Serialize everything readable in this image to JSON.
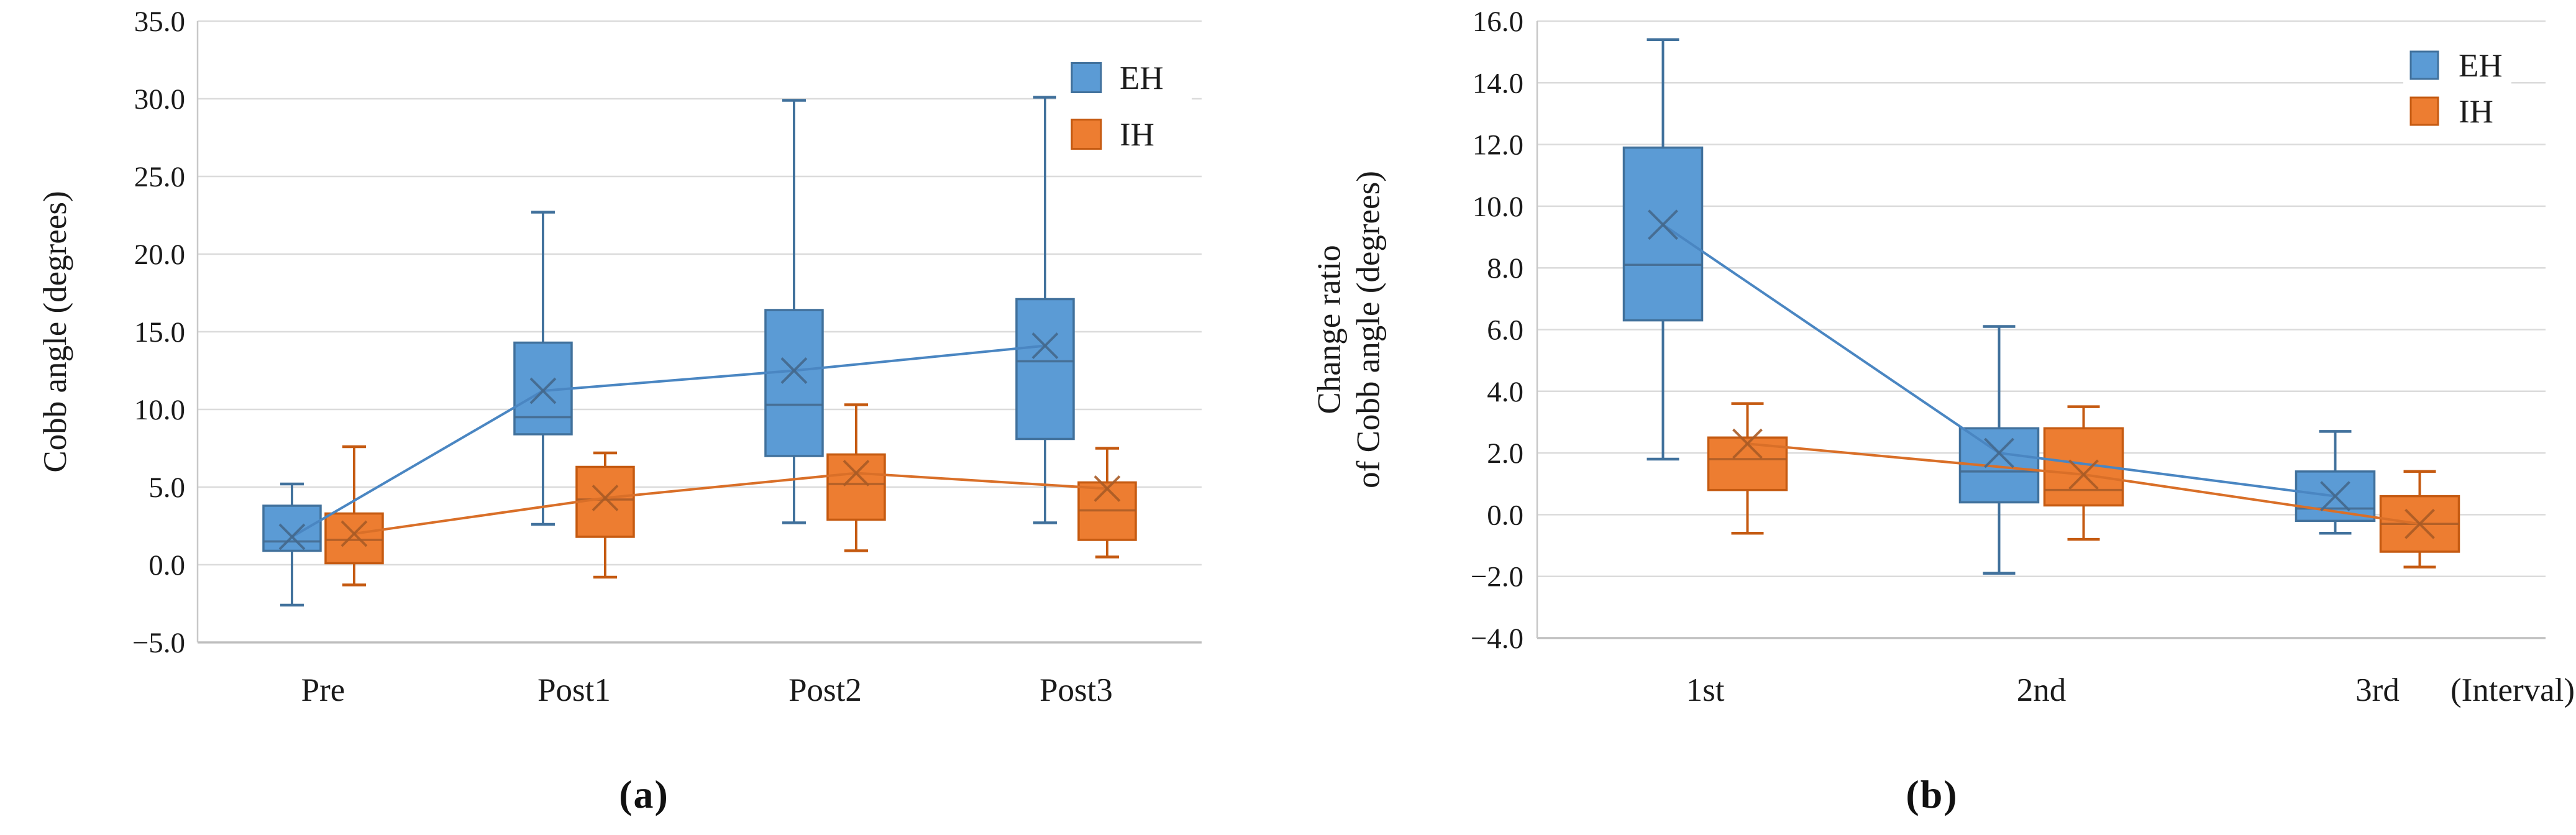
{
  "page": {
    "background": "#ffffff"
  },
  "style": {
    "grid_color": "#DBDBDB",
    "axis_color": "#BFBFBF",
    "vertical_axis_color": "#C8C8C8",
    "text_color": "#1a1a1a",
    "legend_background": "#ffffff"
  },
  "palette": {
    "EH": {
      "fill": "#5B9BD5",
      "stroke": "#41719C",
      "line": "#4A86C2",
      "marker": "#44688C"
    },
    "IH": {
      "fill": "#ED7D31",
      "stroke": "#C55A11",
      "line": "#D96F28",
      "marker": "#A85B26"
    }
  },
  "chart_data": [
    {
      "id": "a",
      "type": "box",
      "caption": "(a)",
      "ylabel_lines": [
        "Cobb angle (degrees)"
      ],
      "ylim": [
        -5.0,
        35.0
      ],
      "ystep": 5.0,
      "tick_decimals": 1,
      "grid": true,
      "legend_position": "top-right-inside",
      "categories": [
        "Pre",
        "Post1",
        "Post2",
        "Post3"
      ],
      "x_annotation": "",
      "legend": [
        "EH",
        "IH"
      ],
      "series": [
        {
          "name": "EH",
          "boxes": [
            {
              "category": "Pre",
              "whisker_low": -2.6,
              "q1": 0.9,
              "median": 1.5,
              "mean": 1.8,
              "q3": 3.8,
              "whisker_high": 5.2
            },
            {
              "category": "Post1",
              "whisker_low": 2.6,
              "q1": 8.4,
              "median": 9.5,
              "mean": 11.2,
              "q3": 14.3,
              "whisker_high": 22.7
            },
            {
              "category": "Post2",
              "whisker_low": 2.7,
              "q1": 7.0,
              "median": 10.3,
              "mean": 12.5,
              "q3": 16.4,
              "whisker_high": 29.9
            },
            {
              "category": "Post3",
              "whisker_low": 2.7,
              "q1": 8.1,
              "median": 13.1,
              "mean": 14.1,
              "q3": 17.1,
              "whisker_high": 30.1
            }
          ]
        },
        {
          "name": "IH",
          "boxes": [
            {
              "category": "Pre",
              "whisker_low": -1.3,
              "q1": 0.1,
              "median": 1.6,
              "mean": 2.0,
              "q3": 3.3,
              "whisker_high": 7.6
            },
            {
              "category": "Post1",
              "whisker_low": -0.8,
              "q1": 1.8,
              "median": 4.2,
              "mean": 4.3,
              "q3": 6.3,
              "whisker_high": 7.2
            },
            {
              "category": "Post2",
              "whisker_low": 0.9,
              "q1": 2.9,
              "median": 5.2,
              "mean": 5.9,
              "q3": 7.1,
              "whisker_high": 10.3
            },
            {
              "category": "Post3",
              "whisker_low": 0.5,
              "q1": 1.6,
              "median": 3.5,
              "mean": 4.9,
              "q3": 5.3,
              "whisker_high": 7.5
            }
          ]
        }
      ]
    },
    {
      "id": "b",
      "type": "box",
      "caption": "(b)",
      "ylabel_lines": [
        "Change ratio",
        "of Cobb angle (degrees)"
      ],
      "ylim": [
        -4.0,
        16.0
      ],
      "ystep": 2.0,
      "tick_decimals": 1,
      "grid": true,
      "legend_position": "top-right-inside",
      "categories": [
        "1st",
        "2nd",
        "3rd"
      ],
      "x_annotation": "(Interval)",
      "legend": [
        "EH",
        "IH"
      ],
      "series": [
        {
          "name": "EH",
          "boxes": [
            {
              "category": "1st",
              "whisker_low": 1.8,
              "q1": 6.3,
              "median": 8.1,
              "mean": 9.4,
              "q3": 11.9,
              "whisker_high": 15.4
            },
            {
              "category": "2nd",
              "whisker_low": -1.9,
              "q1": 0.4,
              "median": 1.4,
              "mean": 2.0,
              "q3": 2.8,
              "whisker_high": 6.1
            },
            {
              "category": "3rd",
              "whisker_low": -0.6,
              "q1": -0.2,
              "median": 0.2,
              "mean": 0.6,
              "q3": 1.4,
              "whisker_high": 2.7
            }
          ]
        },
        {
          "name": "IH",
          "boxes": [
            {
              "category": "1st",
              "whisker_low": -0.6,
              "q1": 0.8,
              "median": 1.8,
              "mean": 2.3,
              "q3": 2.5,
              "whisker_high": 3.6
            },
            {
              "category": "2nd",
              "whisker_low": -0.8,
              "q1": 0.3,
              "median": 0.8,
              "mean": 1.3,
              "q3": 2.8,
              "whisker_high": 3.5
            },
            {
              "category": "3rd",
              "whisker_low": -1.7,
              "q1": -1.2,
              "median": -0.3,
              "mean": -0.3,
              "q3": 0.6,
              "whisker_high": 1.4
            }
          ]
        }
      ]
    }
  ]
}
